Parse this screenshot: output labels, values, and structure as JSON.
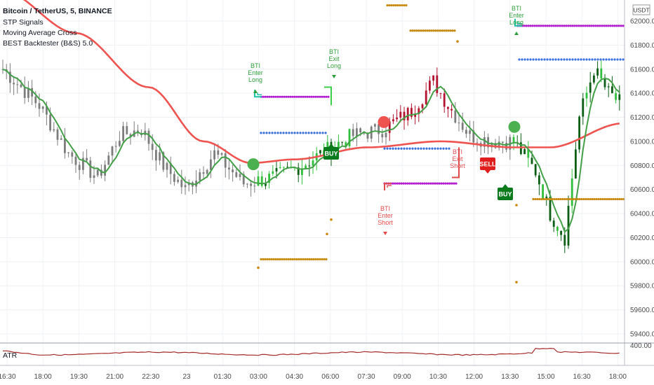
{
  "header": {
    "symbol_line": "Bitcoin / TetherUS, 5, BINANCE",
    "indicators": [
      "STP Signals",
      "Moving Average Cross",
      "BEST Backtester (B&S) 5.0"
    ]
  },
  "currency_badge": "USDT",
  "chart_data": {
    "type": "candlestick",
    "y_ticks": [
      "62000.00",
      "61800.00",
      "61600.00",
      "61400.00",
      "61200.00",
      "61000.00",
      "60800.00",
      "60600.00",
      "60400.00",
      "60200.00",
      "60000.00",
      "59800.00",
      "59600.00",
      "59400.00"
    ],
    "ylim": [
      59300,
      62300
    ],
    "x_ticks": [
      "16:30",
      "18:00",
      "19:30",
      "21:00",
      "22:30",
      "23",
      "01:30",
      "03:00",
      "04:30",
      "06:00",
      "07:30",
      "09:00",
      "10:30",
      "12:00",
      "13:30",
      "15:00",
      "16:30",
      "18:00"
    ],
    "lower_pane": {
      "label": "ATR",
      "tick": "400.00"
    },
    "signals": [
      {
        "label": "BTI Enter Long",
        "color": "#2e9e3a",
        "kind": "enter-long"
      },
      {
        "label": "BTI Exit Long",
        "color": "#2e9e3a",
        "kind": "exit-long"
      },
      {
        "label": "BUY",
        "color": "#0b7a1d",
        "kind": "buy"
      },
      {
        "label": "BTI Enter Short",
        "color": "#e24a4a",
        "kind": "enter-short"
      },
      {
        "label": "BTI Exit Short",
        "color": "#e24a4a",
        "kind": "exit-short"
      },
      {
        "label": "SELL",
        "color": "#e01e1e",
        "kind": "sell"
      },
      {
        "label": "BUY",
        "color": "#0b7a1d",
        "kind": "buy"
      },
      {
        "label": "BTI Enter Long",
        "color": "#2e9e3a",
        "kind": "enter-long"
      }
    ],
    "colors": {
      "candle_gray": "#7d7d7d",
      "candle_green": "#2fbf3a",
      "candle_darkgreen": "#0b5e14",
      "candle_red": "#b3132e",
      "ma_fast": "#43a047",
      "ma_slow": "#ef5350",
      "level_purple": "#b31fd0",
      "level_orange": "#c98a10",
      "level_blue": "#3b6fe0",
      "atr_line": "#a52a2a"
    }
  }
}
